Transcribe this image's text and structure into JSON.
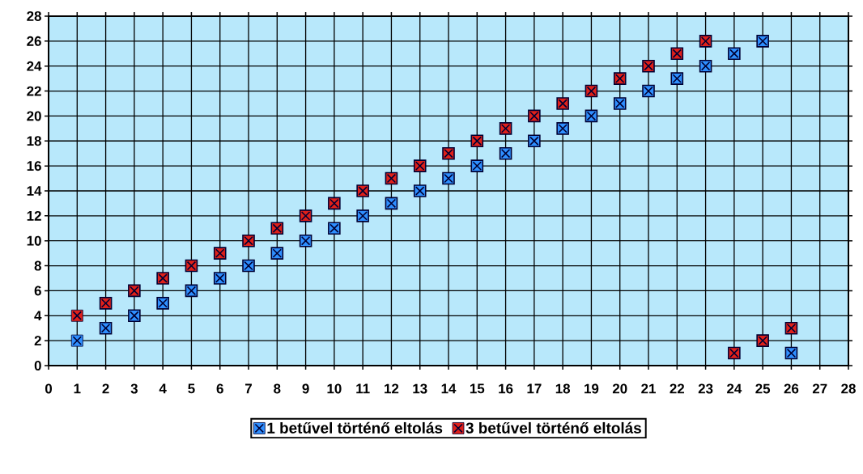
{
  "chart_data": {
    "type": "scatter",
    "x": [
      1,
      2,
      3,
      4,
      5,
      6,
      7,
      8,
      9,
      10,
      11,
      12,
      13,
      14,
      15,
      16,
      17,
      18,
      19,
      20,
      21,
      22,
      23,
      24,
      25,
      26
    ],
    "series": [
      {
        "name": "1 betűvel történő eltolás",
        "color": "#2f8fff",
        "values": [
          2,
          3,
          4,
          5,
          6,
          7,
          8,
          9,
          10,
          11,
          12,
          13,
          14,
          15,
          16,
          17,
          18,
          19,
          20,
          21,
          22,
          23,
          24,
          25,
          26,
          1
        ]
      },
      {
        "name": "3 betűvel történő eltolás",
        "color": "#e0201a",
        "values": [
          4,
          5,
          6,
          7,
          8,
          9,
          10,
          11,
          12,
          13,
          14,
          15,
          16,
          17,
          18,
          19,
          20,
          21,
          22,
          23,
          24,
          25,
          26,
          1,
          2,
          3
        ]
      }
    ],
    "xlim": [
      0,
      28
    ],
    "ylim": [
      0,
      28
    ],
    "xticks": [
      0,
      1,
      2,
      3,
      4,
      5,
      6,
      7,
      8,
      9,
      10,
      11,
      12,
      13,
      14,
      15,
      16,
      17,
      18,
      19,
      20,
      21,
      22,
      23,
      24,
      25,
      26,
      27,
      28
    ],
    "yticks": [
      0,
      2,
      4,
      6,
      8,
      10,
      12,
      14,
      16,
      18,
      20,
      22,
      24,
      26,
      28
    ],
    "grid": true,
    "legend": "bottom",
    "marker": "square"
  }
}
